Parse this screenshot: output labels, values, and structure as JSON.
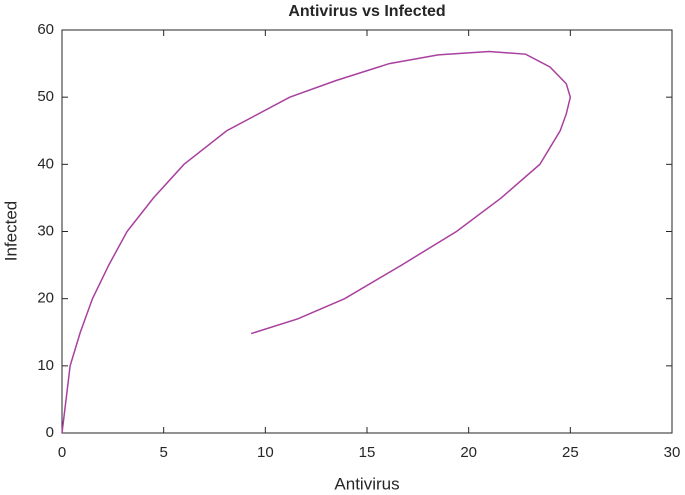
{
  "chart_data": {
    "type": "line",
    "title": "Antivirus vs Infected",
    "x_label": "Antivirus",
    "y_label": "Infected",
    "series": [
      {
        "color": "#a8409f",
        "x": [
          0,
          0.2,
          0.4,
          0.9,
          1.5,
          2.3,
          3.2,
          4.5,
          6.0,
          8.1,
          11.2,
          13.5,
          16.1,
          18.5,
          21,
          22.8,
          24,
          24.8,
          25,
          24.8,
          24.5,
          23.5,
          21.6,
          19.4,
          16.7,
          13.9,
          11.6,
          9.3
        ],
        "values": [
          0,
          5,
          10,
          15,
          20,
          25,
          30,
          35,
          40,
          45,
          50,
          52.5,
          55,
          56.3,
          56.8,
          56.4,
          54.5,
          52,
          50,
          47.5,
          45,
          40,
          35,
          30,
          25,
          20,
          17,
          14.8
        ]
      }
    ],
    "xlim": [
      0,
      30
    ],
    "xticks": [
      0,
      5,
      10,
      15,
      20,
      25,
      30
    ],
    "ylim": [
      0,
      60
    ],
    "yticks": [
      0,
      10,
      20,
      30,
      40,
      50,
      60
    ]
  }
}
